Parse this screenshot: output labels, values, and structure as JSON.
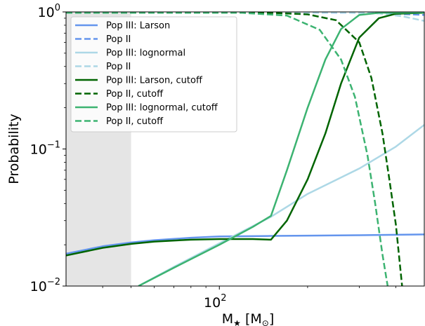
{
  "chart_data": {
    "type": "line",
    "title": "",
    "xlabel": "M",
    "xlabel_sub": "★",
    "xlabel_unit_open": " [M",
    "xlabel_unit_sub": "⊙",
    "xlabel_unit_close": "]",
    "ylabel": "Probability",
    "xscale": "log",
    "yscale": "log",
    "xlim": [
      30,
      500
    ],
    "ylim": [
      0.01,
      1
    ],
    "x_ticks": [
      {
        "value": 100,
        "base": "10",
        "exp": "2"
      }
    ],
    "y_ticks": [
      {
        "value": 0.01,
        "base": "10",
        "exp": "−2"
      },
      {
        "value": 0.1,
        "base": "10",
        "exp": "−1"
      },
      {
        "value": 1,
        "base": "10",
        "exp": "0"
      }
    ],
    "shaded_region": {
      "x": [
        30,
        50
      ],
      "color": "#e5e5e5"
    },
    "grid": false,
    "legend_position": "upper-left",
    "series": [
      {
        "name": "Pop III: Larson",
        "color": "#6495ed",
        "dash": "solid",
        "points": [
          [
            30,
            0.0172
          ],
          [
            40,
            0.0195
          ],
          [
            50,
            0.0208
          ],
          [
            60,
            0.0216
          ],
          [
            80,
            0.0225
          ],
          [
            100,
            0.023
          ],
          [
            150,
            0.0232
          ],
          [
            200,
            0.0233
          ],
          [
            300,
            0.0235
          ],
          [
            500,
            0.0238
          ]
        ]
      },
      {
        "name": "Pop II",
        "color": "#6495ed",
        "dash": "dashed",
        "points": [
          [
            30,
            0.985
          ],
          [
            100,
            0.99
          ],
          [
            200,
            0.99
          ],
          [
            300,
            0.985
          ],
          [
            400,
            0.97
          ],
          [
            500,
            0.95
          ]
        ]
      },
      {
        "name": "Pop III: lognormal",
        "color": "#add8e6",
        "solid": true,
        "dash": "solid",
        "points": [
          [
            53,
            0.01
          ],
          [
            70,
            0.0138
          ],
          [
            100,
            0.0205
          ],
          [
            150,
            0.032
          ],
          [
            200,
            0.047
          ],
          [
            300,
            0.072
          ],
          [
            400,
            0.104
          ],
          [
            500,
            0.15
          ]
        ]
      },
      {
        "name": "Pop II",
        "color": "#add8e6",
        "dash": "dashed",
        "points": [
          [
            30,
            0.985
          ],
          [
            150,
            0.99
          ],
          [
            250,
            0.99
          ],
          [
            350,
            0.975
          ],
          [
            420,
            0.93
          ],
          [
            500,
            0.86
          ]
        ]
      },
      {
        "name": "Pop III: Larson, cutoff",
        "color": "#006400",
        "dash": "solid",
        "points": [
          [
            30,
            0.0167
          ],
          [
            40,
            0.019
          ],
          [
            50,
            0.0203
          ],
          [
            60,
            0.0211
          ],
          [
            80,
            0.0218
          ],
          [
            100,
            0.022
          ],
          [
            130,
            0.022
          ],
          [
            150,
            0.0218
          ],
          [
            170,
            0.03
          ],
          [
            200,
            0.06
          ],
          [
            230,
            0.13
          ],
          [
            260,
            0.3
          ],
          [
            300,
            0.65
          ],
          [
            350,
            0.9
          ],
          [
            400,
            0.97
          ],
          [
            500,
            0.985
          ]
        ]
      },
      {
        "name": "Pop II, cutoff",
        "color": "#006400",
        "dash": "dashed",
        "points": [
          [
            30,
            0.985
          ],
          [
            150,
            0.985
          ],
          [
            200,
            0.96
          ],
          [
            250,
            0.87
          ],
          [
            300,
            0.6
          ],
          [
            330,
            0.33
          ],
          [
            360,
            0.13
          ],
          [
            380,
            0.06
          ],
          [
            400,
            0.028
          ],
          [
            420,
            0.01
          ]
        ]
      },
      {
        "name": "Pop III: lognormal, cutoff",
        "color": "#3cb371",
        "dash": "solid",
        "points": [
          [
            53,
            0.01
          ],
          [
            70,
            0.0136
          ],
          [
            100,
            0.02
          ],
          [
            130,
            0.027
          ],
          [
            150,
            0.0325
          ],
          [
            170,
            0.07
          ],
          [
            200,
            0.2
          ],
          [
            230,
            0.45
          ],
          [
            260,
            0.75
          ],
          [
            300,
            0.95
          ],
          [
            350,
            0.985
          ],
          [
            500,
            0.99
          ]
        ]
      },
      {
        "name": "Pop II, cutoff",
        "color": "#3cb371",
        "dash": "dashed",
        "points": [
          [
            30,
            0.985
          ],
          [
            120,
            0.985
          ],
          [
            170,
            0.94
          ],
          [
            220,
            0.74
          ],
          [
            260,
            0.45
          ],
          [
            290,
            0.24
          ],
          [
            320,
            0.09
          ],
          [
            340,
            0.04
          ],
          [
            360,
            0.017
          ],
          [
            375,
            0.01
          ]
        ]
      }
    ]
  }
}
